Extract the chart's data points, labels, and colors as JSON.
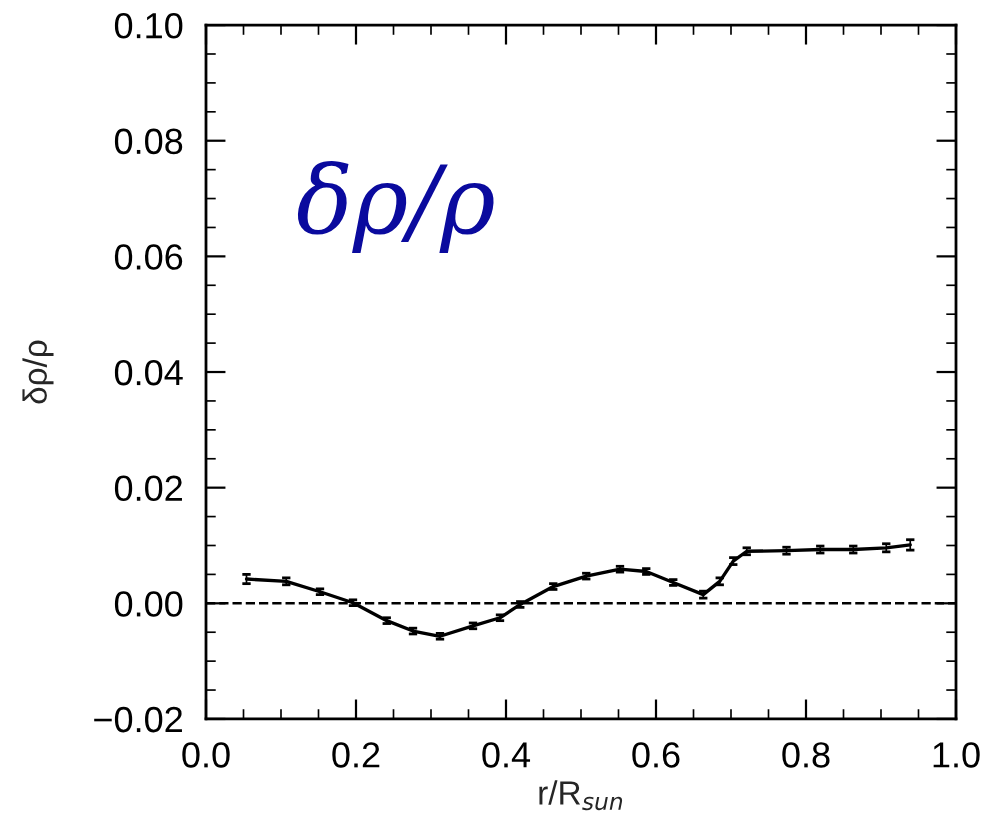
{
  "chart_data": {
    "type": "line",
    "xlabel": "r/R$_{sun}$",
    "ylabel": "δρ/ρ",
    "annotations": [
      "δρ/ρ"
    ],
    "xlim": [
      0.0,
      1.0
    ],
    "xticks": [
      {
        "value": 0.0,
        "label": "0.0"
      },
      {
        "value": 0.2,
        "label": "0.2"
      },
      {
        "value": 0.4,
        "label": "0.4"
      },
      {
        "value": 0.6,
        "label": "0.6"
      },
      {
        "value": 0.8,
        "label": "0.8"
      },
      {
        "value": 1.0,
        "label": "1.0"
      }
    ],
    "ylim": [
      -0.02,
      0.1
    ],
    "yticks": [
      {
        "value": -0.02,
        "label": "−0.02"
      },
      {
        "value": 0.0,
        "label": "0.00"
      },
      {
        "value": 0.02,
        "label": "0.02"
      },
      {
        "value": 0.04,
        "label": "0.04"
      },
      {
        "value": 0.06,
        "label": "0.06"
      },
      {
        "value": 0.08,
        "label": "0.08"
      },
      {
        "value": 0.1,
        "label": "0.10"
      }
    ],
    "grid": false,
    "legend": false,
    "marker": "none",
    "line_style": "solid",
    "ref_lines": [
      {
        "axis": "y",
        "value": 0,
        "line_style": "dashed",
        "color": "#000000"
      }
    ],
    "series": [
      {
        "color": "#000000",
        "x": [
          0.054,
          0.107,
          0.152,
          0.196,
          0.241,
          0.276,
          0.312,
          0.356,
          0.392,
          0.419,
          0.463,
          0.507,
          0.552,
          0.587,
          0.623,
          0.663,
          0.685,
          0.703,
          0.721,
          0.774,
          0.819,
          0.863,
          0.907,
          0.939
        ],
        "values": [
          0.0042,
          0.0038,
          0.002,
          0.0001,
          -0.003,
          -0.0048,
          -0.0057,
          -0.0039,
          -0.0025,
          -0.0002,
          0.0029,
          0.0047,
          0.0059,
          0.0055,
          0.0036,
          0.0015,
          0.0038,
          0.0073,
          0.009,
          0.0091,
          0.0093,
          0.0093,
          0.0096,
          0.0101
        ],
        "errors": [
          0.0008,
          0.0006,
          0.0005,
          0.0005,
          0.0005,
          0.0005,
          0.0005,
          0.0005,
          0.0005,
          0.0005,
          0.0005,
          0.0005,
          0.0005,
          0.0005,
          0.0005,
          0.0006,
          0.0006,
          0.0006,
          0.0006,
          0.0006,
          0.0006,
          0.0006,
          0.0007,
          0.0009
        ]
      }
    ]
  }
}
